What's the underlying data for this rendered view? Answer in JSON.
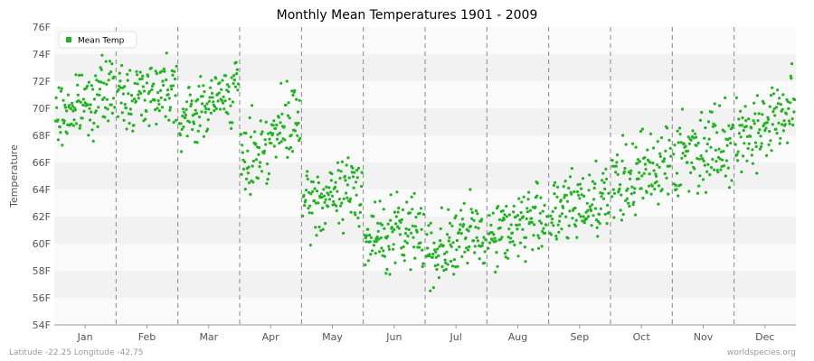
{
  "footer": {
    "location": "Latitude -22.25 Longitude -42.75",
    "source": "worldspecies.org"
  },
  "chart_data": {
    "type": "scatter",
    "title": "Monthly Mean Temperatures 1901 - 2009",
    "xlabel": "",
    "ylabel": "Temperature",
    "ylim": [
      54,
      76
    ],
    "yticks": [
      "54F",
      "56F",
      "58F",
      "60F",
      "62F",
      "64F",
      "66F",
      "68F",
      "70F",
      "72F",
      "74F",
      "76F"
    ],
    "categories": [
      "Jan",
      "Feb",
      "Mar",
      "Apr",
      "May",
      "Jun",
      "Jul",
      "Aug",
      "Sep",
      "Oct",
      "Nov",
      "Dec"
    ],
    "grid": true,
    "legend": {
      "placement": "top-left",
      "entries": [
        "Mean Temp"
      ]
    },
    "colors": {
      "series": "#1eb41e",
      "band_dark": "#f2f2f2",
      "band_light": "#fafafa"
    },
    "series": [
      {
        "name": "Mean Temp",
        "points_per_month": 109,
        "monthly_summary": [
          {
            "month": "Jan",
            "start": 69.2,
            "end": 71.6,
            "min": 67.2,
            "max": 74.3
          },
          {
            "month": "Feb",
            "start": 70.6,
            "end": 71.8,
            "min": 67.6,
            "max": 75.3
          },
          {
            "month": "Mar",
            "start": 69.0,
            "end": 71.6,
            "min": 66.8,
            "max": 73.7
          },
          {
            "month": "Apr",
            "start": 66.0,
            "end": 69.4,
            "min": 63.4,
            "max": 72.0
          },
          {
            "month": "May",
            "start": 62.6,
            "end": 64.4,
            "min": 59.3,
            "max": 67.0
          },
          {
            "month": "Jun",
            "start": 60.2,
            "end": 61.2,
            "min": 55.8,
            "max": 64.5
          },
          {
            "month": "Jul",
            "start": 59.3,
            "end": 61.0,
            "min": 55.2,
            "max": 64.0
          },
          {
            "month": "Aug",
            "start": 60.6,
            "end": 62.2,
            "min": 57.5,
            "max": 65.5
          },
          {
            "month": "Sep",
            "start": 61.9,
            "end": 63.8,
            "min": 58.8,
            "max": 67.6
          },
          {
            "month": "Oct",
            "start": 63.8,
            "end": 66.5,
            "min": 61.5,
            "max": 70.9
          },
          {
            "month": "Nov",
            "start": 66.2,
            "end": 68.0,
            "min": 62.3,
            "max": 71.9
          },
          {
            "month": "Dec",
            "start": 67.6,
            "end": 70.0,
            "min": 65.2,
            "max": 73.4
          }
        ]
      }
    ]
  }
}
